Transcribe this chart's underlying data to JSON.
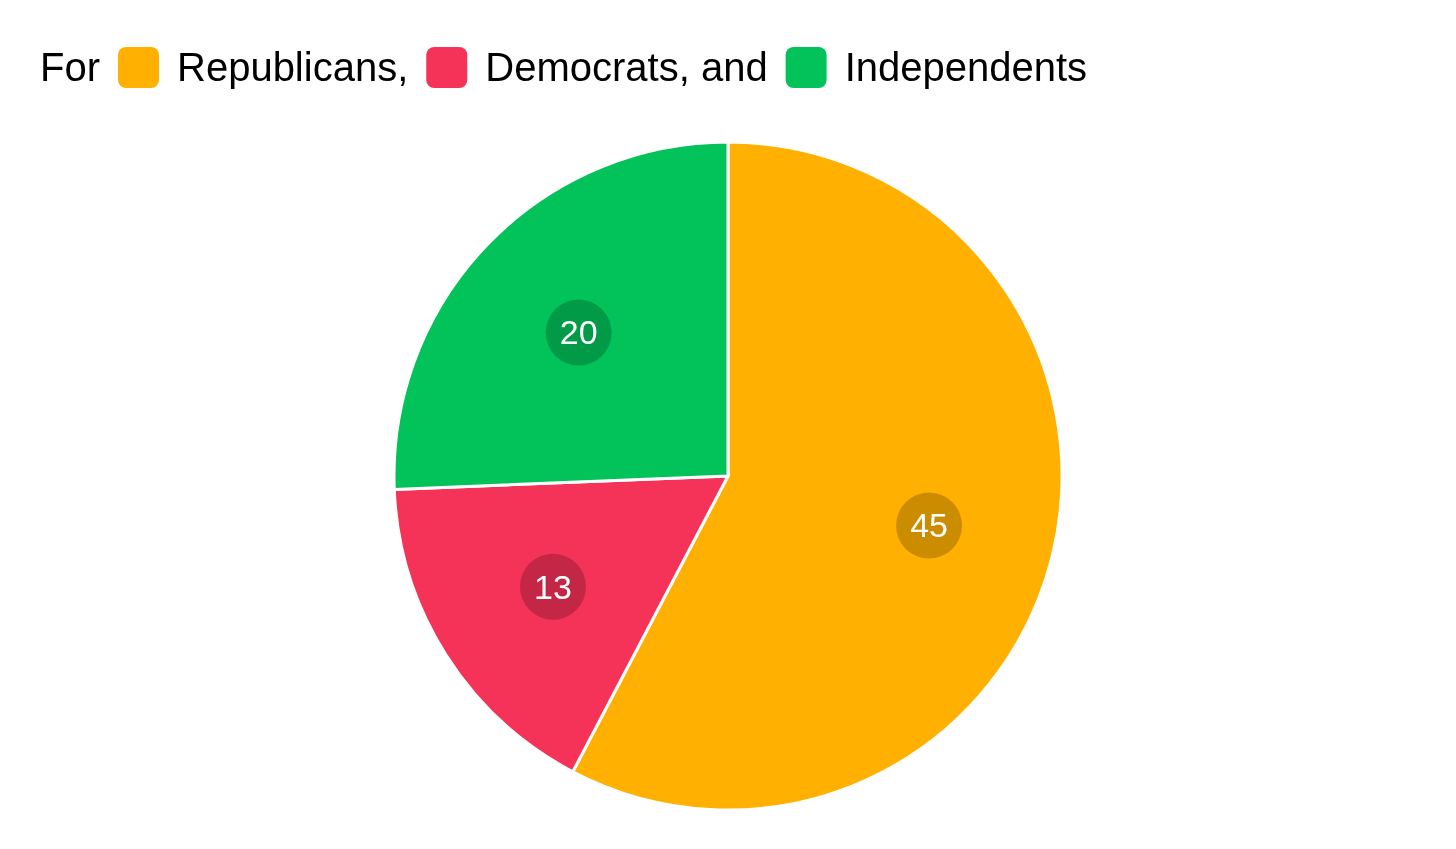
{
  "chart_data": {
    "type": "pie",
    "legend_title": "For",
    "categories": [
      "Republicans",
      "Democrats",
      "Independents"
    ],
    "annotations": [
      ",",
      ", and"
    ],
    "values": [
      45,
      13,
      20
    ],
    "colors": [
      "#ffb000",
      "#f53257",
      "#02c25a"
    ],
    "data_labels": true,
    "legend": "top left"
  }
}
